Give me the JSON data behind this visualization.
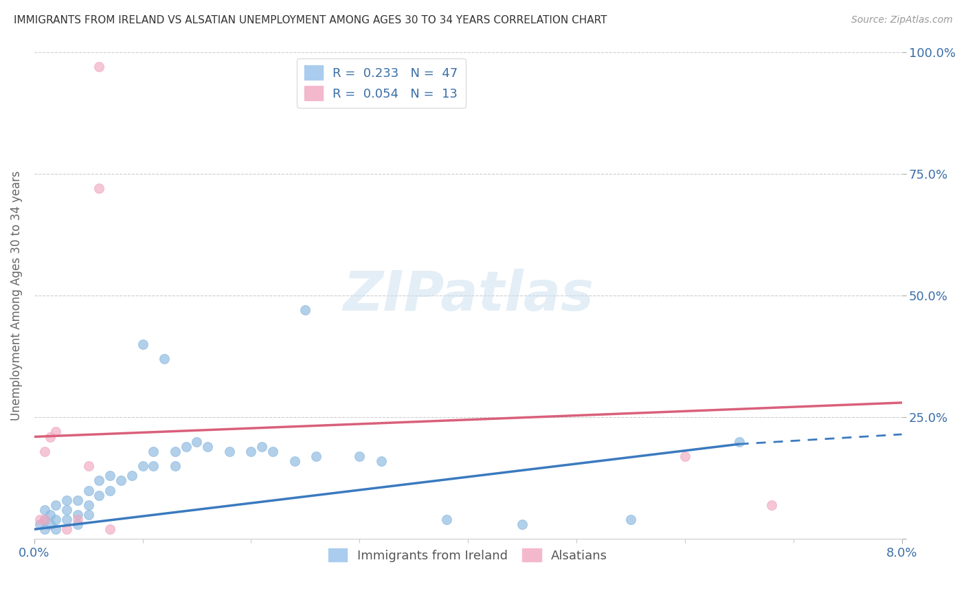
{
  "title": "IMMIGRANTS FROM IRELAND VS ALSATIAN UNEMPLOYMENT AMONG AGES 30 TO 34 YEARS CORRELATION CHART",
  "source": "Source: ZipAtlas.com",
  "ylabel": "Unemployment Among Ages 30 to 34 years",
  "ytick_labels": [
    "",
    "25.0%",
    "50.0%",
    "75.0%",
    "100.0%"
  ],
  "ytick_values": [
    0.0,
    0.25,
    0.5,
    0.75,
    1.0
  ],
  "xlim": [
    0.0,
    0.08
  ],
  "ylim": [
    0.0,
    1.0
  ],
  "blue_color": "#89b8e0",
  "pink_color": "#f0a8c0",
  "blue_trend": [
    0.0,
    0.02,
    0.065,
    0.195
  ],
  "blue_trend_dash": [
    0.065,
    0.195,
    0.08,
    0.215
  ],
  "pink_trend": [
    0.0,
    0.21,
    0.08,
    0.28
  ],
  "watermark_text": "ZIPatlas",
  "blue_scatter_x": [
    0.0005,
    0.001,
    0.001,
    0.001,
    0.0015,
    0.0015,
    0.002,
    0.002,
    0.002,
    0.003,
    0.003,
    0.003,
    0.004,
    0.004,
    0.004,
    0.005,
    0.005,
    0.005,
    0.006,
    0.006,
    0.007,
    0.007,
    0.008,
    0.009,
    0.01,
    0.011,
    0.013,
    0.014,
    0.015,
    0.016,
    0.018,
    0.02,
    0.021,
    0.022,
    0.024,
    0.026,
    0.03,
    0.032,
    0.038,
    0.045,
    0.055,
    0.065,
    0.025,
    0.012,
    0.013,
    0.01,
    0.011
  ],
  "blue_scatter_y": [
    0.03,
    0.04,
    0.02,
    0.06,
    0.05,
    0.03,
    0.04,
    0.07,
    0.02,
    0.06,
    0.04,
    0.08,
    0.08,
    0.05,
    0.03,
    0.1,
    0.07,
    0.05,
    0.12,
    0.09,
    0.13,
    0.1,
    0.12,
    0.13,
    0.15,
    0.18,
    0.18,
    0.19,
    0.2,
    0.19,
    0.18,
    0.18,
    0.19,
    0.18,
    0.16,
    0.17,
    0.17,
    0.16,
    0.04,
    0.03,
    0.04,
    0.2,
    0.47,
    0.37,
    0.15,
    0.4,
    0.15
  ],
  "pink_scatter_x": [
    0.0005,
    0.001,
    0.001,
    0.0015,
    0.002,
    0.003,
    0.004,
    0.005,
    0.006,
    0.006,
    0.007,
    0.06,
    0.068
  ],
  "pink_scatter_y": [
    0.04,
    0.18,
    0.04,
    0.21,
    0.22,
    0.02,
    0.04,
    0.15,
    0.97,
    0.72,
    0.02,
    0.17,
    0.07
  ],
  "bottom_legend": [
    "Immigrants from Ireland",
    "Alsatians"
  ],
  "legend_r_n": [
    "R =  0.233   N =  47",
    "R =  0.054   N =  13"
  ]
}
